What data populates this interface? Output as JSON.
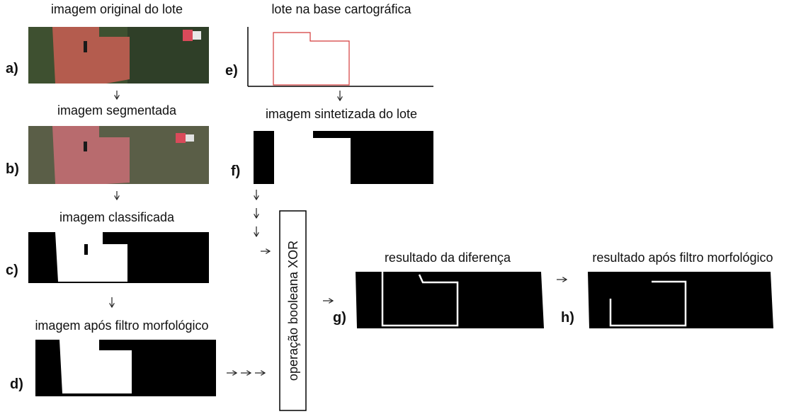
{
  "panels": [
    {
      "label": "a)",
      "title": "imagem original do lote"
    },
    {
      "label": "b)",
      "title": "imagem segmentada"
    },
    {
      "label": "c)",
      "title": "imagem classificada"
    },
    {
      "label": "d)",
      "title": "imagem após filtro morfológico"
    },
    {
      "label": "e)",
      "title": "lote na base cartográfica"
    },
    {
      "label": "f)",
      "title": "imagem sintetizada do lote"
    },
    {
      "label": "g)",
      "title": "resultado da diferença"
    },
    {
      "label": "h)",
      "title": "resultado após filtro morfológico"
    }
  ],
  "operation": "operação booleana XOR"
}
